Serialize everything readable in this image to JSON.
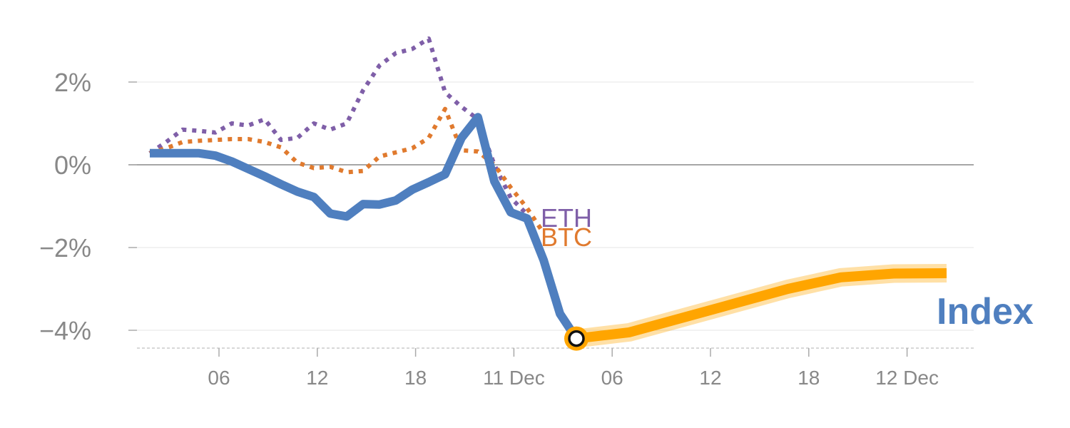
{
  "chart_data": {
    "type": "line",
    "y_unit": "%",
    "ylim": [
      -4.4,
      3.1
    ],
    "y_ticks": [
      {
        "value": 2,
        "label": "2%"
      },
      {
        "value": 0,
        "label": "0%"
      },
      {
        "value": -2,
        "label": "−2%"
      },
      {
        "value": -4,
        "label": "−4%"
      }
    ],
    "x_ticks": [
      {
        "label": "06"
      },
      {
        "label": "12"
      },
      {
        "label": "18"
      },
      {
        "label": "11 Dec"
      },
      {
        "label": "06"
      },
      {
        "label": "12"
      },
      {
        "label": "18"
      },
      {
        "label": "12 Dec"
      }
    ],
    "series": [
      {
        "name": "Index",
        "style": "solid",
        "color": "#4f7fbf",
        "values": [
          0.28,
          0.28,
          0.28,
          0.28,
          0.22,
          0.08,
          -0.1,
          -0.28,
          -0.47,
          -0.65,
          -0.78,
          -1.18,
          -1.25,
          -0.95,
          -0.96,
          -0.86,
          -0.6,
          -0.42,
          -0.23,
          0.65,
          1.15,
          -0.4,
          -1.15,
          -1.3,
          -2.3,
          -3.6,
          -4.2
        ]
      },
      {
        "name": "BTC",
        "style": "dotted",
        "color": "#e07a2e",
        "values": [
          0.28,
          0.4,
          0.55,
          0.58,
          0.6,
          0.62,
          0.62,
          0.55,
          0.42,
          0.05,
          -0.08,
          -0.05,
          -0.18,
          -0.15,
          0.2,
          0.3,
          0.4,
          0.65,
          1.35,
          0.35,
          0.32,
          0.0,
          -0.55,
          -1.05,
          -1.65
        ]
      },
      {
        "name": "ETH",
        "style": "dotted",
        "color": "#7f5fa8",
        "values": [
          0.28,
          0.55,
          0.85,
          0.82,
          0.78,
          1.0,
          0.95,
          1.1,
          0.6,
          0.65,
          1.0,
          0.85,
          1.0,
          1.8,
          2.4,
          2.7,
          2.8,
          3.05,
          1.75,
          1.4,
          1.1,
          0.0,
          -0.8,
          -1.2
        ]
      }
    ],
    "forecast": {
      "color": "#ffa500",
      "values": [
        -4.2,
        -4.05,
        -3.7,
        -3.35,
        -3.0,
        -2.72,
        -2.63,
        -2.62
      ]
    }
  }
}
